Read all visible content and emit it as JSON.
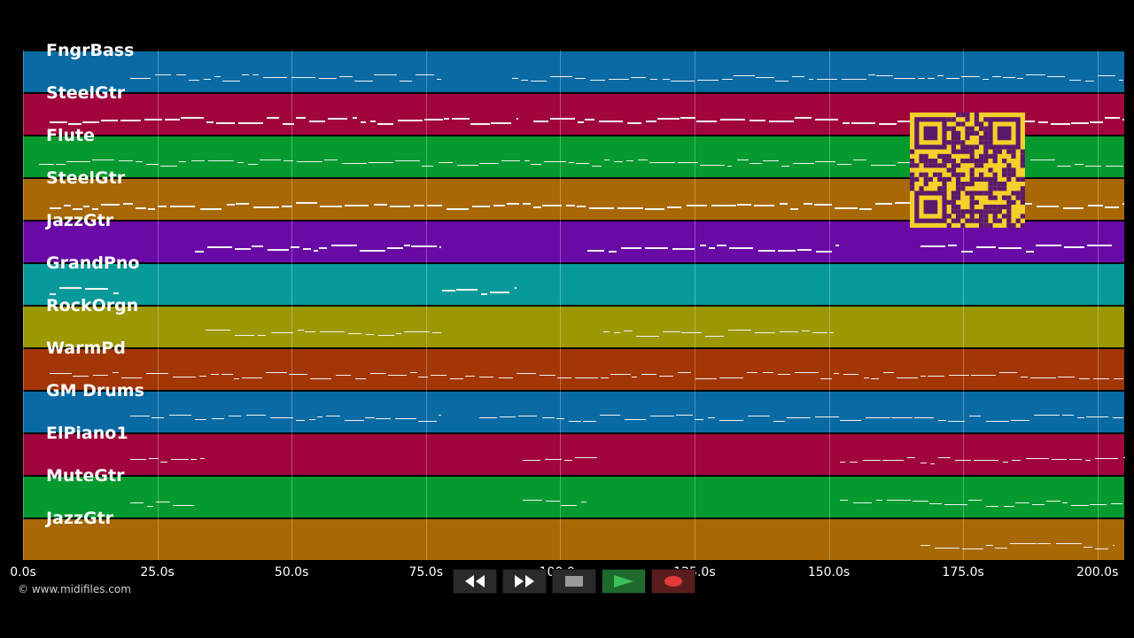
{
  "app": {
    "type": "MIDI piano-roll visualizer",
    "copyright": "© www.midifiles.com"
  },
  "timeline": {
    "duration_s": 205,
    "ticks": [
      {
        "t": 0,
        "label": "0.0s"
      },
      {
        "t": 25,
        "label": "25.0s"
      },
      {
        "t": 50,
        "label": "50.0s"
      },
      {
        "t": 75,
        "label": "75.0s"
      },
      {
        "t": 100,
        "label": "100.0s"
      },
      {
        "t": 125,
        "label": "125.0s"
      },
      {
        "t": 150,
        "label": "150.0s"
      },
      {
        "t": 175,
        "label": "175.0s"
      },
      {
        "t": 200,
        "label": "200.0s"
      }
    ]
  },
  "tracks": [
    {
      "name": "FngrBass",
      "color": "#0a6aa3"
    },
    {
      "name": "SteelGtr",
      "color": "#a0063c"
    },
    {
      "name": "Flute",
      "color": "#049a30"
    },
    {
      "name": "SteelGtr",
      "color": "#a86806"
    },
    {
      "name": "JazzGtr",
      "color": "#6a0aa6"
    },
    {
      "name": "GrandPno",
      "color": "#089a9a"
    },
    {
      "name": "RockOrgn",
      "color": "#9c9804"
    },
    {
      "name": "WarmPd",
      "color": "#a23604"
    },
    {
      "name": "GM Drums",
      "color": "#0a6aa3"
    },
    {
      "name": "ElPiano1",
      "color": "#a0063c"
    },
    {
      "name": "MuteGtr",
      "color": "#049a30"
    },
    {
      "name": "JazzGtr",
      "color": "#a86806"
    }
  ],
  "transport": {
    "buttons": [
      {
        "name": "rewind-button",
        "icon": "rewind-icon"
      },
      {
        "name": "fast-forward-button",
        "icon": "fast-forward-icon"
      },
      {
        "name": "stop-button",
        "icon": "stop-icon"
      },
      {
        "name": "play-button",
        "icon": "play-icon"
      },
      {
        "name": "record-button",
        "icon": "record-icon"
      }
    ]
  },
  "qr_code": {
    "icon": "qr-code-icon",
    "color": "#f5cf2a"
  }
}
